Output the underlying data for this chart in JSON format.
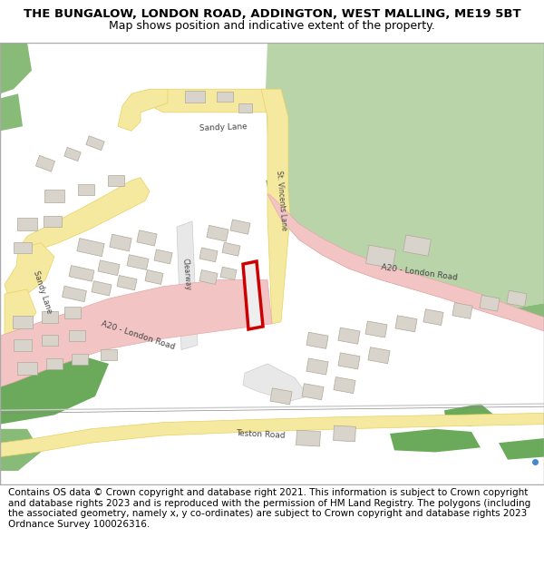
{
  "title_line1": "THE BUNGALOW, LONDON ROAD, ADDINGTON, WEST MALLING, ME19 5BT",
  "title_line2": "Map shows position and indicative extent of the property.",
  "footer_text": "Contains OS data © Crown copyright and database right 2021. This information is subject to Crown copyright and database rights 2023 and is reproduced with the permission of HM Land Registry. The polygons (including the associated geometry, namely x, y co-ordinates) are subject to Crown copyright and database rights 2023 Ordnance Survey 100026316.",
  "title_fontsize": 9.5,
  "footer_fontsize": 7.5,
  "fig_width": 6.0,
  "fig_height": 6.25,
  "map_bg": "#f8f8f8",
  "road_pink": "#f2c4c4",
  "road_pink_edge": "#e8a8a8",
  "road_yellow": "#f5e9a0",
  "road_yellow_edge": "#e8d060",
  "green_light": "#b8d4a8",
  "green_dark": "#6aaa5a",
  "green_mid": "#88bb78",
  "highlight_red": "#cc0000",
  "building_color": "#d8d4cc",
  "building_outline": "#b0a898",
  "text_color": "#000000",
  "road_text": "#444444",
  "border_color": "#aaaaaa"
}
